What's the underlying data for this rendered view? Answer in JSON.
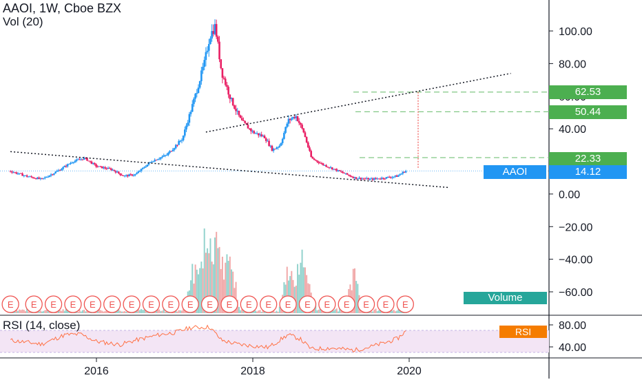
{
  "header": {
    "symbol_line": "AAOI, 1W, Cboe BZX",
    "vol_label": "Vol (20)",
    "rsi_label": "RSI (14, close)"
  },
  "tags": {
    "level_62": "62.53",
    "level_50": "50.44",
    "level_22": "22.33",
    "symbol": "AAOI",
    "last_price": "14.12",
    "volume": "Volume",
    "rsi": "RSI"
  },
  "colors": {
    "up": "#26a69a",
    "down": "#ef5350",
    "price_up": "#2196f3",
    "price_down": "#e91e63",
    "green_tag": "#4caf50",
    "blue_tag": "#2196f3",
    "teal_tag": "#26a69a",
    "orange_tag": "#f57c00",
    "rsi_line": "#ff7043",
    "rsi_band": "#f3e5f5"
  },
  "price_axis": {
    "ticks": [
      "100.00",
      "80.00",
      "60.00",
      "40.00",
      "20.00",
      "0.00",
      "−20.00",
      "−40.00",
      "−60.00"
    ]
  },
  "rsi_axis": {
    "ticks": [
      "80.00",
      "40.00"
    ]
  },
  "time_axis": {
    "ticks": [
      "2016",
      "2018",
      "2020"
    ]
  },
  "earnings_marker_label": "E",
  "chart_data": {
    "type": "candlestick",
    "symbol": "AAOI",
    "interval": "1W",
    "exchange": "Cboe BZX",
    "ylim": [
      -70,
      110
    ],
    "x_range": [
      2014.9,
      2021.7
    ],
    "price_path": [
      [
        2014.9,
        14
      ],
      [
        2015.1,
        11
      ],
      [
        2015.3,
        9
      ],
      [
        2015.5,
        14
      ],
      [
        2015.7,
        20
      ],
      [
        2015.85,
        22
      ],
      [
        2016.0,
        17
      ],
      [
        2016.2,
        15
      ],
      [
        2016.35,
        11
      ],
      [
        2016.5,
        12
      ],
      [
        2016.7,
        20
      ],
      [
        2016.9,
        24
      ],
      [
        2017.1,
        34
      ],
      [
        2017.25,
        58
      ],
      [
        2017.38,
        80
      ],
      [
        2017.45,
        97
      ],
      [
        2017.52,
        103
      ],
      [
        2017.6,
        75
      ],
      [
        2017.72,
        58
      ],
      [
        2017.85,
        45
      ],
      [
        2018.0,
        38
      ],
      [
        2018.15,
        35
      ],
      [
        2018.25,
        27
      ],
      [
        2018.35,
        30
      ],
      [
        2018.45,
        45
      ],
      [
        2018.55,
        48
      ],
      [
        2018.65,
        38
      ],
      [
        2018.75,
        22
      ],
      [
        2018.9,
        18
      ],
      [
        2019.1,
        14
      ],
      [
        2019.3,
        10
      ],
      [
        2019.5,
        9
      ],
      [
        2019.7,
        10
      ],
      [
        2019.85,
        11
      ],
      [
        2019.95,
        14.12
      ]
    ],
    "last_price": 14.12,
    "levels": [
      62.53,
      50.44,
      22.33
    ],
    "trendlines": [
      {
        "from": [
          2014.9,
          26
        ],
        "to": [
          2020.5,
          4
        ]
      },
      {
        "from": [
          2017.4,
          38
        ],
        "to": [
          2021.3,
          74
        ]
      }
    ],
    "volume": {
      "label": "Vol (20)",
      "spike_times": [
        2017.25,
        2017.38,
        2017.45,
        2017.52,
        2017.6,
        2017.72,
        2018.45,
        2018.6,
        2018.7,
        2019.3
      ]
    },
    "rsi": {
      "label": "RSI (14, close)",
      "ylim": [
        25,
        90
      ],
      "band": [
        30,
        70
      ],
      "path": [
        [
          2014.9,
          52
        ],
        [
          2015.3,
          45
        ],
        [
          2015.6,
          62
        ],
        [
          2015.8,
          63
        ],
        [
          2016.0,
          50
        ],
        [
          2016.3,
          44
        ],
        [
          2016.5,
          52
        ],
        [
          2016.8,
          62
        ],
        [
          2017.0,
          66
        ],
        [
          2017.2,
          75
        ],
        [
          2017.45,
          76
        ],
        [
          2017.6,
          52
        ],
        [
          2017.8,
          45
        ],
        [
          2018.0,
          42
        ],
        [
          2018.2,
          39
        ],
        [
          2018.45,
          62
        ],
        [
          2018.6,
          55
        ],
        [
          2018.75,
          36
        ],
        [
          2019.0,
          38
        ],
        [
          2019.3,
          34
        ],
        [
          2019.5,
          40
        ],
        [
          2019.7,
          48
        ],
        [
          2019.85,
          55
        ],
        [
          2019.95,
          68
        ]
      ]
    },
    "earnings_markers": [
      2014.9,
      2015.2,
      2015.45,
      2015.7,
      2015.95,
      2016.2,
      2016.45,
      2016.7,
      2016.95,
      2017.2,
      2017.45,
      2017.7,
      2017.95,
      2018.2,
      2018.45,
      2018.7,
      2018.95,
      2019.2,
      2019.45,
      2019.7,
      2019.95
    ]
  }
}
